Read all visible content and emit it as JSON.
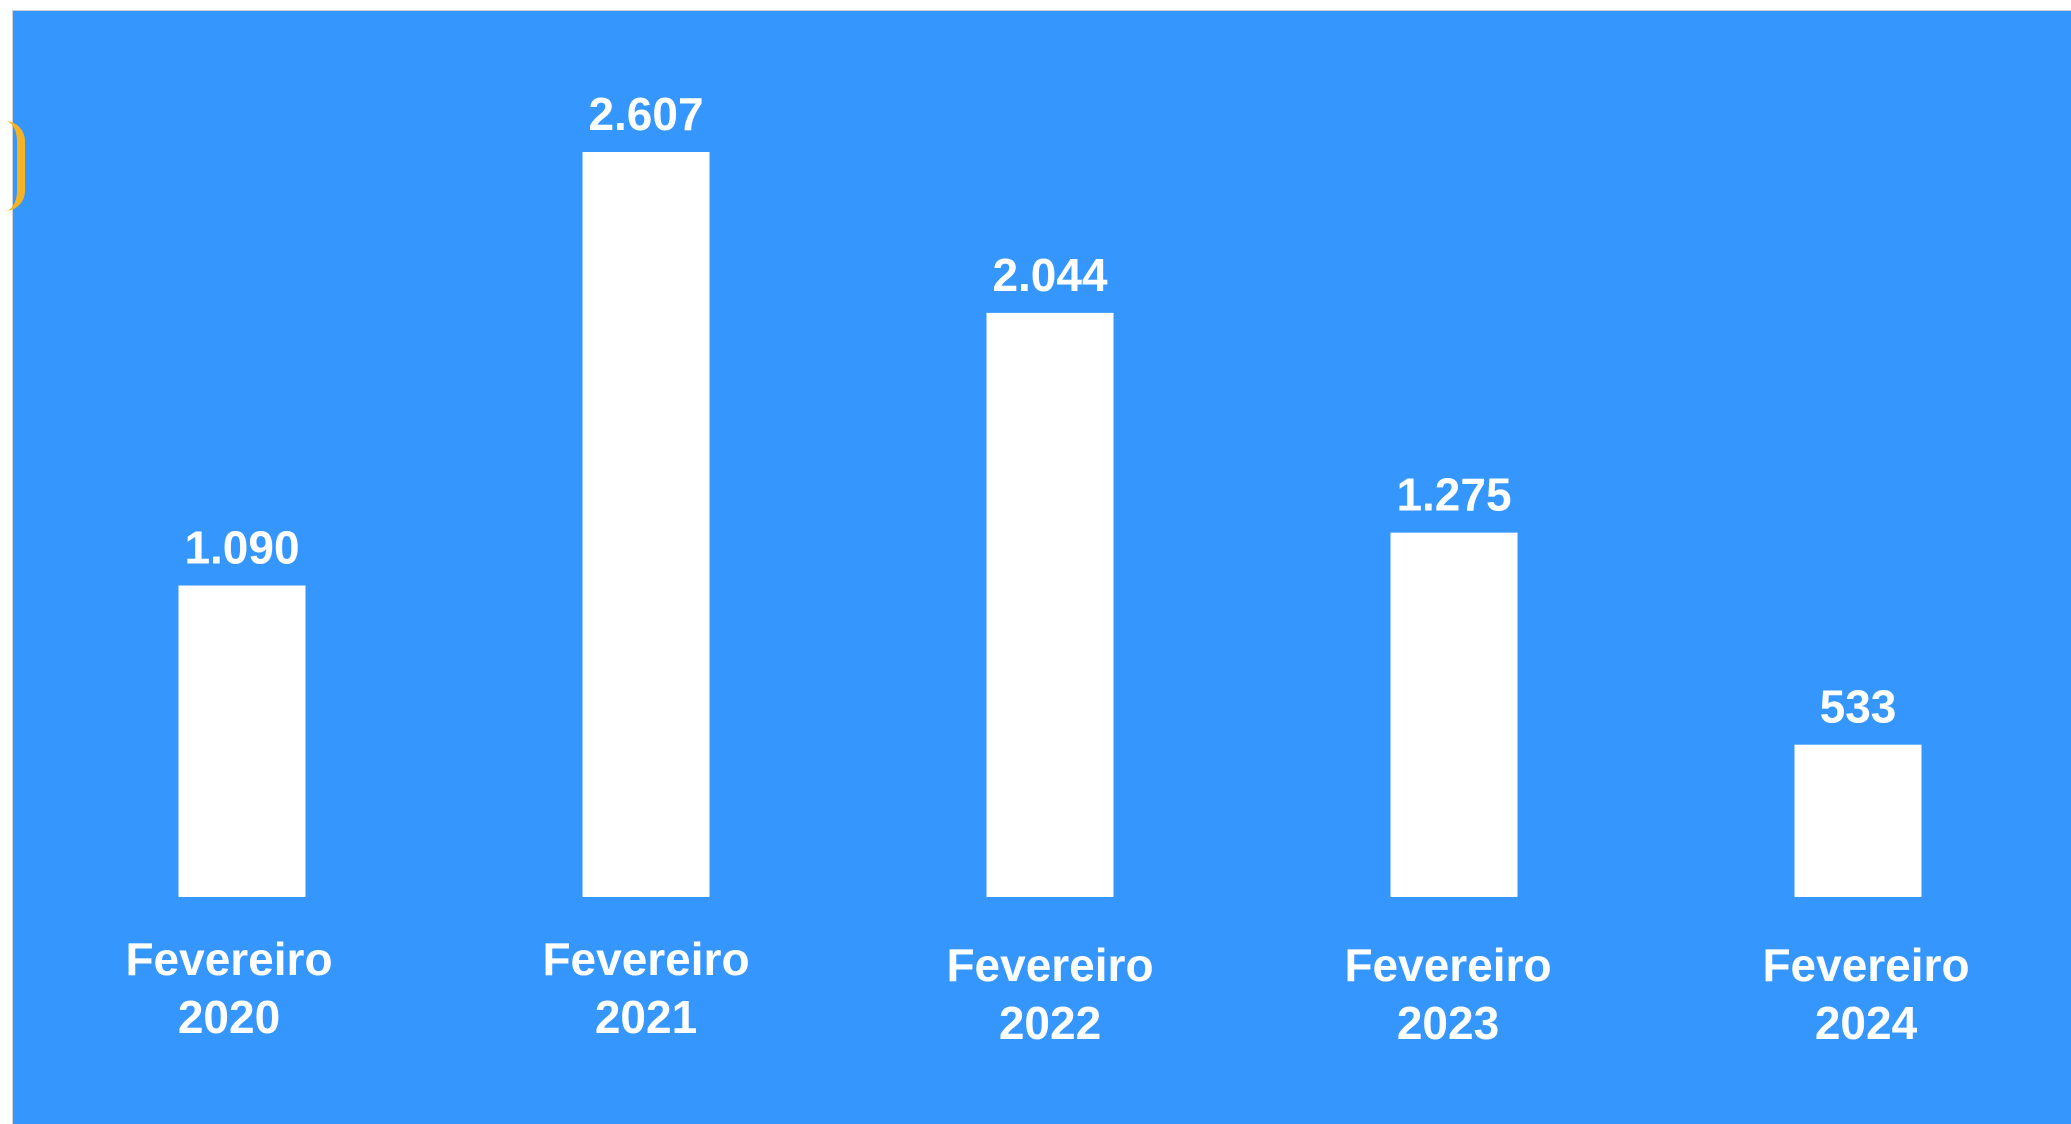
{
  "chart_data": {
    "type": "bar",
    "categories": [
      [
        "Fevereiro",
        "2020"
      ],
      [
        "Fevereiro",
        "2021"
      ],
      [
        "Fevereiro",
        "2022"
      ],
      [
        "Fevereiro",
        "2023"
      ],
      [
        "Fevereiro",
        "2024"
      ]
    ],
    "values": [
      1090,
      2607,
      2044,
      1275,
      533
    ],
    "value_labels": [
      "1.090",
      "2.607",
      "2.044",
      "1.275",
      "533"
    ],
    "title": "",
    "xlabel": "",
    "ylabel": "",
    "ylim": [
      0,
      2607
    ],
    "grid": false,
    "legend": "none"
  },
  "colors": {
    "background": "#3597FE",
    "bar": "#FFFFFF",
    "text": "#FFFFFF",
    "accent": "#F5B324"
  }
}
